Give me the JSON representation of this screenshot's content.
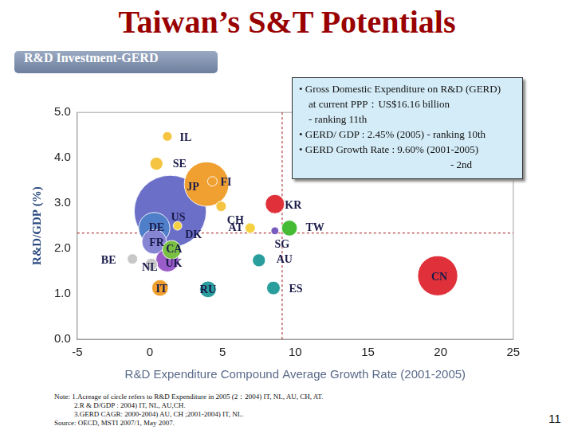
{
  "chart_data": {
    "type": "bubble",
    "title": "Taiwan’s S&T Potentials",
    "subtitle": "R&D Investment-GERD",
    "x_label": "R&D Expenditure Compound Average Growth Rate (2001-2005)",
    "y_label": "R&D/GDP (%)",
    "xlim": [
      -5,
      25
    ],
    "xticks": [
      -5,
      0,
      5,
      10,
      15,
      20,
      25
    ],
    "ylim": [
      0,
      5
    ],
    "yticks": [
      {
        "value": 0,
        "label": "0.0"
      },
      {
        "value": 1,
        "label": "1.0"
      },
      {
        "value": 2,
        "label": "2.0"
      },
      {
        "value": 3,
        "label": "3.0"
      },
      {
        "value": 4,
        "label": "4.0"
      },
      {
        "value": 5,
        "label": "5.0"
      }
    ],
    "grid": false,
    "reference_lines": [
      {
        "axis": "x",
        "value": 9.1
      },
      {
        "axis": "y",
        "value": 2.34
      }
    ],
    "points": [
      {
        "label": "US",
        "x": 1.4,
        "y": 2.82,
        "size": 340,
        "color": "#6b6fc8"
      },
      {
        "label": "CN",
        "x": 19.8,
        "y": 1.4,
        "size": 105,
        "color": "#e0303a"
      },
      {
        "label": "JP",
        "x": 3.9,
        "y": 3.42,
        "size": 130,
        "color": "#f0a030"
      },
      {
        "label": "DE",
        "x": 0.3,
        "y": 2.45,
        "size": 64,
        "color": "#4f7fc8"
      },
      {
        "label": "FR",
        "x": 0.3,
        "y": 2.15,
        "size": 40,
        "color": "#8585d4"
      },
      {
        "label": "UK",
        "x": 1.2,
        "y": 1.74,
        "size": 35,
        "color": "#9a5cc8"
      },
      {
        "label": "KR",
        "x": 8.6,
        "y": 2.98,
        "size": 24,
        "color": "#e0303a"
      },
      {
        "label": "CA",
        "x": 1.5,
        "y": 1.97,
        "size": 23,
        "color": "#7ac143"
      },
      {
        "label": "IT",
        "x": 0.7,
        "y": 1.13,
        "size": 18,
        "color": "#f0a030"
      },
      {
        "label": "RU",
        "x": 4.0,
        "y": 1.1,
        "size": 18,
        "color": "#2a9d9d"
      },
      {
        "label": "ES",
        "x": 8.5,
        "y": 1.13,
        "size": 12,
        "color": "#2a9d9d"
      },
      {
        "label": "AU",
        "x": 7.5,
        "y": 1.74,
        "size": 11,
        "color": "#2a9d9d"
      },
      {
        "label": "NL",
        "x": 0.1,
        "y": 1.65,
        "size": 10,
        "color": "#c8c8c8"
      },
      {
        "label": "SE",
        "x": 0.45,
        "y": 3.87,
        "size": 11,
        "color": "#f5c542"
      },
      {
        "label": "BE",
        "x": -1.2,
        "y": 1.77,
        "size": 7,
        "color": "#c8c8c8"
      },
      {
        "label": "CH",
        "x": 4.9,
        "y": 2.93,
        "size": 7,
        "color": "#f5c542"
      },
      {
        "label": "AT",
        "x": 6.9,
        "y": 2.45,
        "size": 7,
        "color": "#f5d142"
      },
      {
        "label": "IL",
        "x": 1.2,
        "y": 4.47,
        "size": 6,
        "color": "#f5c542"
      },
      {
        "label": "FI",
        "x": 4.3,
        "y": 3.48,
        "size": 6,
        "color": "#f0a030"
      },
      {
        "label": "DK",
        "x": 1.9,
        "y": 2.5,
        "size": 5,
        "color": "#f5d142"
      },
      {
        "label": "SG",
        "x": 8.6,
        "y": 2.39,
        "size": 4,
        "color": "#7a5cc0"
      },
      {
        "label": "TW",
        "x": 9.6,
        "y": 2.45,
        "size": 16.16,
        "color": "#44bb33"
      }
    ],
    "annotation": [
      "• Gross Domestic Expenditure on R&D (GERD)",
      "at current PPP：US$16.16 billion",
      "- ranking 11th",
      "• GERD/ GDP : 2.45% (2005) - ranking 10th",
      "• GERD Growth Rate : 9.60% (2001-2005)",
      "- 2nd"
    ],
    "notes": [
      "Note: 1.Acreage of circle refers to R&D Expenditure in 2005 (2：2004) IT, NL, AU, CH, AT.",
      "2.R & D/GDP : 2004) IT, NL, AU,CH.",
      "3.GERD CAGR: 2000-2004) AU, CH ;2001-2004) IT, NL.",
      "Source: OECD, MSTI 2007/1, May 2007."
    ],
    "page_number": "11"
  }
}
